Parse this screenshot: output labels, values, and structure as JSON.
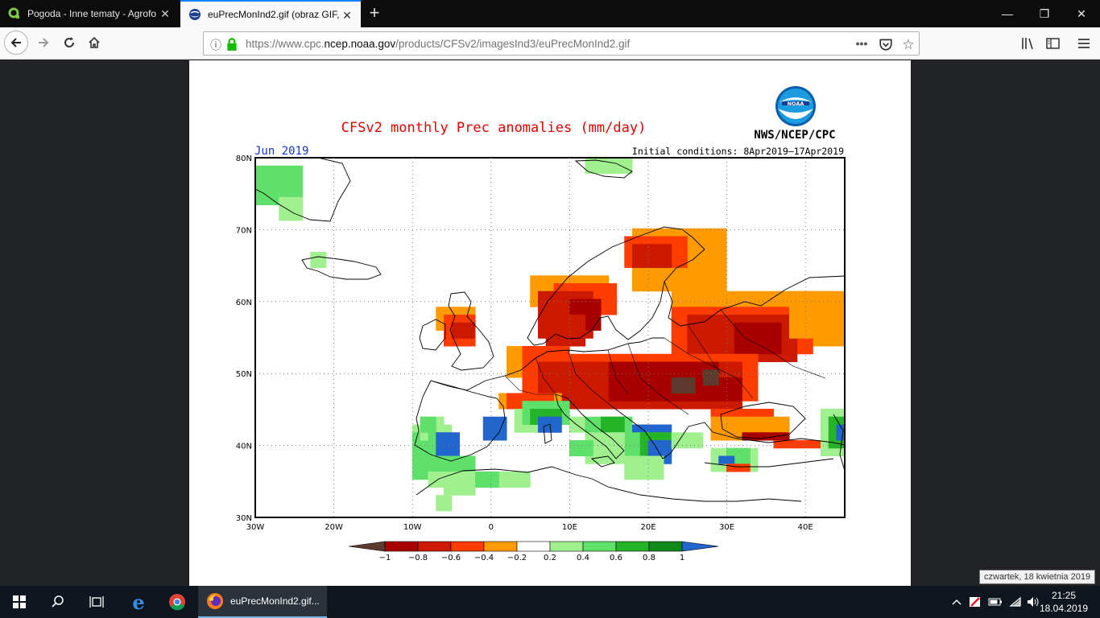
{
  "browser": {
    "tabs": [
      {
        "title": "Pogoda - Inne tematy - Agrofo",
        "active": false
      },
      {
        "title": "euPrecMonInd2.gif (obraz GIF,",
        "active": true
      }
    ],
    "url": {
      "prefix": "https://www.cpc.",
      "host": "ncep.noaa.gov",
      "path": "/products/CFSv2/imagesInd3/euPrecMonInd2.gif"
    },
    "icons": [
      "back-icon",
      "forward-icon",
      "reload-icon",
      "home-icon",
      "info-icon",
      "lock-icon",
      "more-icon",
      "pocket-icon",
      "bookmark-star-icon",
      "library-icon",
      "sidebar-icon",
      "menu-icon"
    ]
  },
  "figure": {
    "title": "CFSv2 monthly Prec anomalies (mm/day)",
    "month": "Jun 2019",
    "initial_conditions": "Initial conditions: 8Apr2019–17Apr2019",
    "agency": "NWS/NCEP/CPC",
    "logo_text": "NOAA",
    "lat_labels": [
      "80N",
      "70N",
      "60N",
      "50N",
      "40N",
      "30N"
    ],
    "lon_labels": [
      "30W",
      "20W",
      "10W",
      "0",
      "10E",
      "20E",
      "30E",
      "40E"
    ],
    "colorbar": {
      "labels": [
        "−1",
        "−0.8",
        "−0.6",
        "−0.4",
        "−0.2",
        "0.2",
        "0.4",
        "0.6",
        "0.8",
        "1"
      ],
      "colors": [
        "#5c3a2e",
        "#a80000",
        "#cc1a00",
        "#ff3c00",
        "#ff9a00",
        "#ffffff",
        "#a0f090",
        "#5ee06a",
        "#25b328",
        "#0f8a1a",
        "#2166cc"
      ]
    }
  },
  "taskbar": {
    "app_label": "euPrecMonInd2.gif...",
    "time": "21:25",
    "date": "18.04.2019",
    "tooltip": "czwartek, 18 kwietnia 2019"
  }
}
